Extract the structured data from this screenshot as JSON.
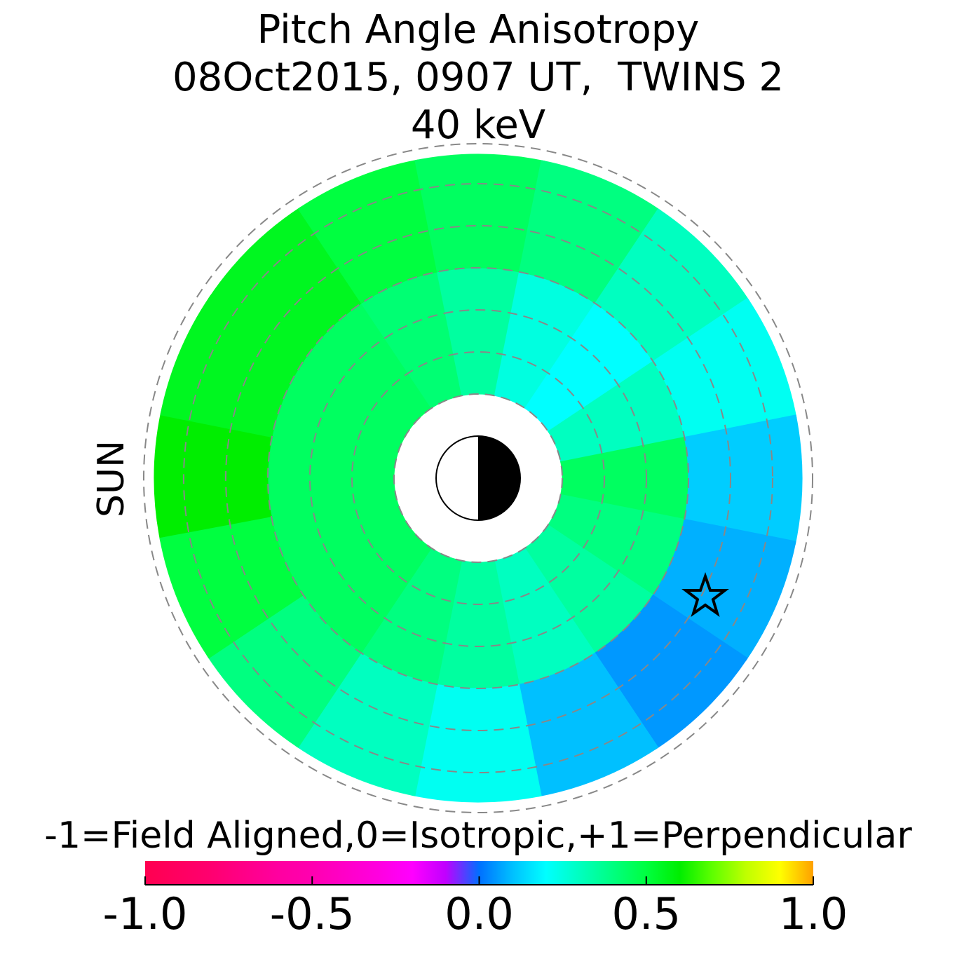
{
  "chart_data": {
    "type": "polar-map",
    "title": [
      "Pitch Angle Anisotropy",
      "08Oct2015, 0907 UT,  TWINS 2",
      "40 keV"
    ],
    "sun_label": "SUN",
    "sun_color": "#ffa000",
    "colorbar_label": "-1=Field Aligned,0=Isotropic,+1=Perpendicular",
    "clim": [
      -1,
      1
    ],
    "cticks": [
      {
        "value": -1,
        "label": "-1.0"
      },
      {
        "value": -0.5,
        "label": "-0.5"
      },
      {
        "value": 0,
        "label": "0.0"
      },
      0.5,
      {
        "value": 1,
        "label": "1.0"
      }
    ],
    "colormap": [
      "#ff0050",
      "#ff0060",
      "#ff0070",
      "#ff0088",
      "#ff00a0",
      "#ff00b0",
      "#ff00c8",
      "#ff00e0",
      "#ff00ff",
      "#c000ff",
      "#0070ff",
      "#00c0ff",
      "#00ffff",
      "#00ffc0",
      "#00ff80",
      "#00ff40",
      "#00ee00",
      "#60ff00",
      "#c0ff00",
      "#ffff00",
      "#ffa000"
    ],
    "values": [
      [
        0.45,
        0.45,
        0.45,
        0.42,
        0.35,
        0.25,
        0.2,
        0.3,
        0.45,
        0.4,
        0.35,
        0.3,
        0.35,
        0.4,
        0.45,
        0.45
      ],
      [
        0.6,
        0.55,
        0.55,
        0.5,
        0.45,
        0.4,
        0.3,
        0.22,
        0.12,
        0.08,
        0.05,
        0.1,
        0.22,
        0.3,
        0.4,
        0.5
      ]
    ]
  }
}
